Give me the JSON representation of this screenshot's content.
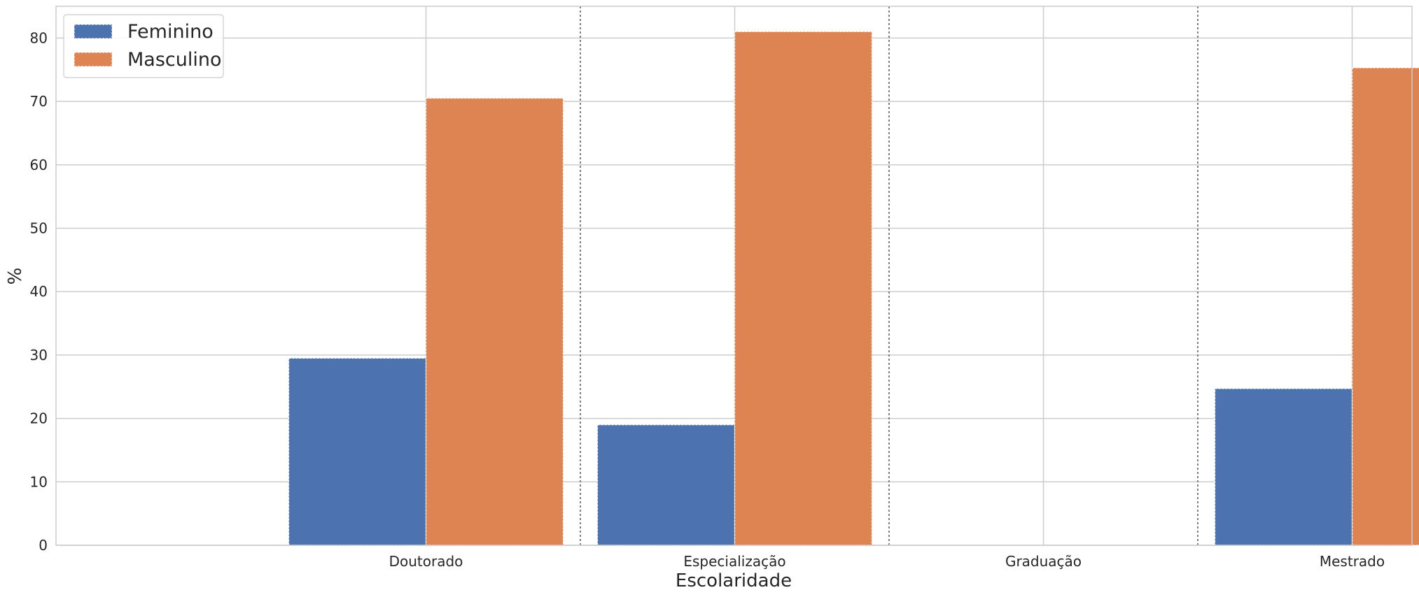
{
  "chart_data": {
    "type": "bar",
    "categories": [
      "Doutorado",
      "Especialização",
      "Graduação",
      "Mestrado"
    ],
    "series": [
      {
        "name": "Feminino",
        "color": "#4C72B0",
        "values": [
          29.5,
          19.0,
          0,
          24.7
        ]
      },
      {
        "name": "Masculino",
        "color": "#DD8452",
        "values": [
          70.5,
          81.0,
          0,
          75.3
        ]
      }
    ],
    "xlabel": "Escolaridade",
    "ylabel": "%",
    "ylim": [
      0,
      85
    ],
    "yticks": [
      0,
      10,
      20,
      30,
      40,
      50,
      60,
      70,
      80
    ],
    "grid": true,
    "category_separators": "dotted",
    "legend": {
      "position": "top-left",
      "entries": [
        "Feminino",
        "Masculino"
      ]
    }
  }
}
